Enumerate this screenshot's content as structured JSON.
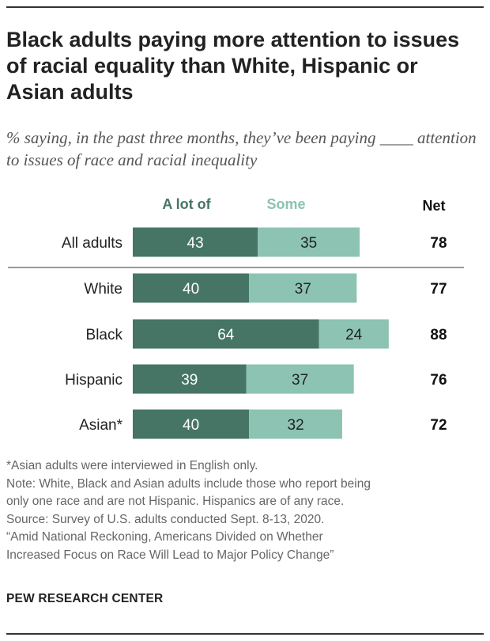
{
  "title": "Black adults paying more attention to issues of racial equality than White, Hispanic or Asian adults",
  "subtitle": "% saying, in the past three months, they’ve been paying ____ attention to issues of race and racial inequality",
  "colors": {
    "a_lot_of": "#467566",
    "some": "#8cc3b3",
    "legend_a_lot": "#467566",
    "legend_some": "#8cc3b3"
  },
  "chart_data": {
    "type": "bar",
    "orientation": "horizontal",
    "stacked": true,
    "categories": [
      "All adults",
      "White",
      "Black",
      "Hispanic",
      "Asian*"
    ],
    "series": [
      {
        "name": "A lot of",
        "values": [
          43,
          40,
          64,
          39,
          40
        ]
      },
      {
        "name": "Some",
        "values": [
          35,
          37,
          24,
          37,
          32
        ]
      }
    ],
    "net_label": "Net",
    "net": [
      78,
      77,
      88,
      76,
      72
    ],
    "xlim": [
      0,
      100
    ],
    "grid": false,
    "legend": "top"
  },
  "notes": [
    "*Asian adults were interviewed in English only.",
    "Note: White, Black and Asian adults include those who report being",
    "only one race and are not Hispanic. Hispanics are of any race.",
    "Source: Survey of U.S. adults conducted Sept. 8-13, 2020.",
    "“Amid National Reckoning, Americans Divided on Whether",
    "Increased Focus on Race Will Lead to Major Policy Change”"
  ],
  "footer": "PEW RESEARCH CENTER"
}
